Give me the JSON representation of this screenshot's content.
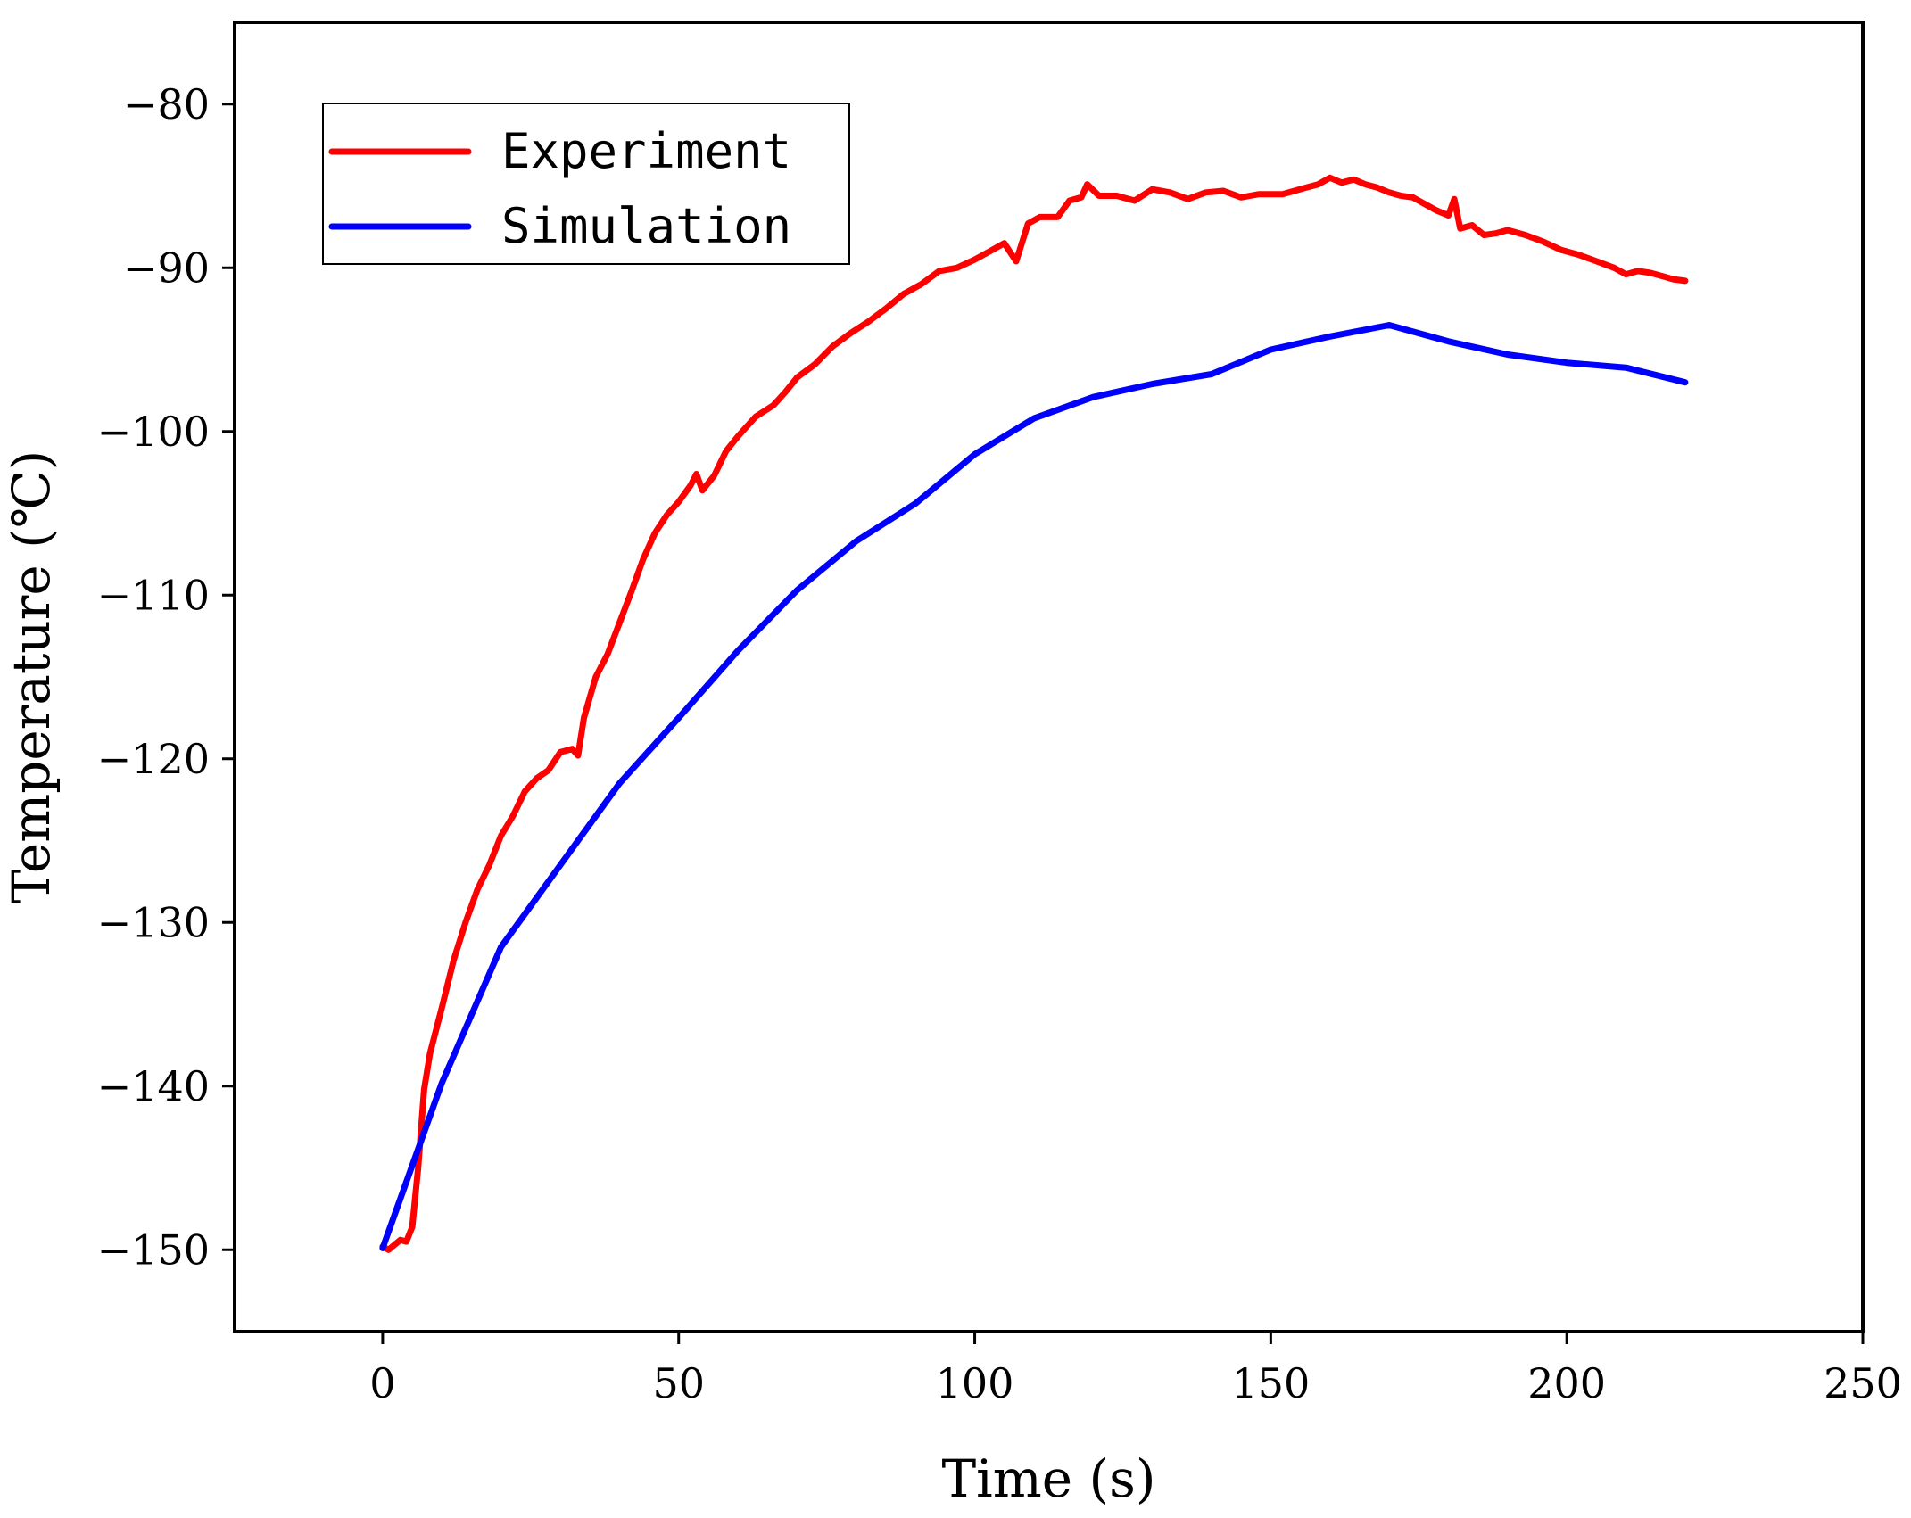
{
  "chart_data": {
    "type": "line",
    "title": "",
    "xlabel": "Time (s)",
    "ylabel": "Temperature (℃)",
    "xlim": [
      -25,
      250
    ],
    "ylim": [
      -155,
      -75
    ],
    "xticks": [
      0,
      50,
      100,
      150,
      200,
      250
    ],
    "yticks": [
      -80,
      -90,
      -100,
      -110,
      -120,
      -130,
      -140,
      -150
    ],
    "xtick_labels": [
      "0",
      "50",
      "100",
      "150",
      "200",
      "250"
    ],
    "ytick_labels": [
      "−80",
      "−90",
      "−100",
      "−110",
      "−120",
      "−130",
      "−140",
      "−150"
    ],
    "grid": false,
    "legend_position": "top-left",
    "series": [
      {
        "name": "Experiment",
        "color": "#ff0000",
        "x": [
          0,
          1,
          2,
          3,
          4,
          5,
          6,
          7,
          8,
          10,
          12,
          14,
          16,
          18,
          20,
          22,
          24,
          26,
          28,
          30,
          32,
          33,
          34,
          36,
          38,
          40,
          42,
          44,
          46,
          48,
          50,
          52,
          53,
          54,
          56,
          58,
          60,
          63,
          66,
          68,
          70,
          73,
          76,
          79,
          82,
          85,
          88,
          91,
          94,
          97,
          100,
          103,
          105,
          107,
          109,
          111,
          114,
          116,
          118,
          119,
          121,
          124,
          127,
          130,
          133,
          136,
          139,
          142,
          145,
          148,
          150,
          152,
          154,
          156,
          158,
          160,
          162,
          164,
          166,
          168,
          170,
          172,
          174,
          176,
          178,
          180,
          181,
          182,
          184,
          186,
          188,
          190,
          193,
          196,
          199,
          202,
          205,
          208,
          210,
          212,
          214,
          216,
          218,
          220
        ],
        "y": [
          -149.8,
          -150.0,
          -149.7,
          -149.4,
          -149.5,
          -148.6,
          -145.0,
          -140.2,
          -138.0,
          -135.2,
          -132.3,
          -130.0,
          -128.0,
          -126.5,
          -124.7,
          -123.5,
          -122.0,
          -121.2,
          -120.7,
          -119.6,
          -119.4,
          -119.8,
          -117.5,
          -115.0,
          -113.6,
          -111.7,
          -109.8,
          -107.8,
          -106.2,
          -105.1,
          -104.3,
          -103.3,
          -102.6,
          -103.6,
          -102.7,
          -101.2,
          -100.3,
          -99.1,
          -98.4,
          -97.6,
          -96.7,
          -95.9,
          -94.8,
          -94.0,
          -93.3,
          -92.5,
          -91.6,
          -91.0,
          -90.2,
          -90.0,
          -89.5,
          -88.9,
          -88.5,
          -89.6,
          -87.3,
          -86.9,
          -86.9,
          -85.9,
          -85.7,
          -84.9,
          -85.6,
          -85.6,
          -85.9,
          -85.2,
          -85.4,
          -85.8,
          -85.4,
          -85.3,
          -85.7,
          -85.5,
          -85.5,
          -85.5,
          -85.3,
          -85.1,
          -84.9,
          -84.5,
          -84.8,
          -84.6,
          -84.9,
          -85.1,
          -85.4,
          -85.6,
          -85.7,
          -86.1,
          -86.5,
          -86.8,
          -85.8,
          -87.6,
          -87.4,
          -88.0,
          -87.9,
          -87.7,
          -88.0,
          -88.4,
          -88.9,
          -89.2,
          -89.6,
          -90.0,
          -90.4,
          -90.2,
          -90.3,
          -90.5,
          -90.7,
          -90.8
        ]
      },
      {
        "name": "Simulation",
        "color": "#0000ff",
        "x": [
          0,
          10,
          20,
          30,
          40,
          50,
          60,
          70,
          80,
          90,
          100,
          110,
          120,
          130,
          140,
          150,
          160,
          170,
          180,
          190,
          200,
          210,
          220
        ],
        "y": [
          -149.9,
          -139.8,
          -131.5,
          -126.5,
          -121.5,
          -117.5,
          -113.4,
          -109.7,
          -106.7,
          -104.4,
          -101.4,
          -99.2,
          -97.9,
          -97.1,
          -96.5,
          -95.0,
          -94.2,
          -93.5,
          -94.5,
          -95.3,
          -95.8,
          -96.1,
          -97.0
        ]
      }
    ]
  }
}
